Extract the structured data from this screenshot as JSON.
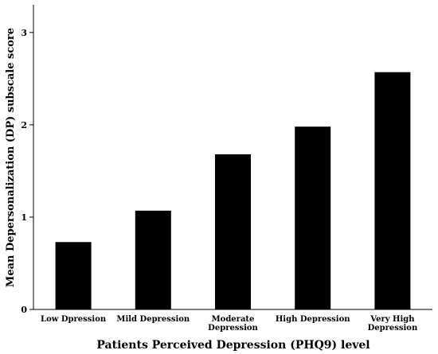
{
  "chart_data": {
    "type": "bar",
    "title": "",
    "categories": [
      "Low Dpression",
      "Mild Depression",
      "Moderate Depression",
      "High Depression",
      "Very High Depression"
    ],
    "category_lines": [
      [
        "Low Dpression"
      ],
      [
        "Mild Depression"
      ],
      [
        "Moderate",
        "Depression"
      ],
      [
        "High Depression"
      ],
      [
        "Very High",
        "Depression"
      ]
    ],
    "series": [
      {
        "values": [
          0.73,
          1.07,
          1.68,
          1.98,
          2.57
        ]
      }
    ],
    "xlabel": "Patients Perceived Depression (PHQ9) level",
    "ylabel": "Mean Depersonalization (DP) subscale score",
    "yticks": [
      "0",
      "1",
      "2",
      "3"
    ],
    "ylim": [
      0,
      3.3
    ],
    "grid": false,
    "legend": "none",
    "bar_color": "#000000"
  }
}
